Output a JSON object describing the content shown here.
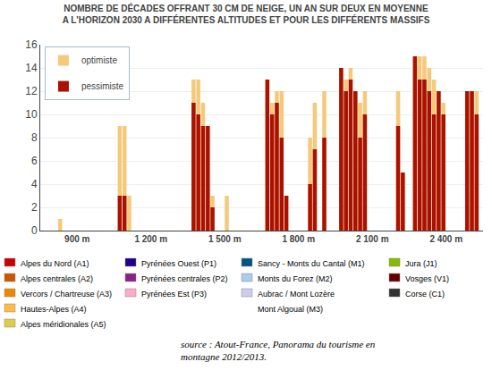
{
  "chart_data": {
    "type": "bar",
    "title": "NOMBRE DE DÉCADES OFFRANT 30 CM DE NEIGE, UN AN SUR DEUX EN MOYENNE\nA L'HORIZON 2030 A DIFFÉRENTES ALTITUDES ET POUR LES DIFFÉRENTS MASSIFS",
    "categories": [
      "900 m",
      "1 200 m",
      "1 500 m",
      "1 800 m",
      "2 100 m",
      "2 400 m"
    ],
    "series": [
      {
        "name": "optimiste",
        "color": "#f5c97a",
        "values": [
          [
            0,
            0,
            0,
            1,
            0,
            0,
            0,
            0,
            0,
            0,
            0,
            0,
            0,
            0
          ],
          [
            9,
            9,
            3,
            0,
            0,
            0,
            0,
            0,
            0,
            0,
            0,
            0,
            0,
            0
          ],
          [
            13,
            13,
            11,
            9,
            3,
            0,
            0,
            3,
            0,
            0,
            0,
            0,
            0,
            0
          ],
          [
            13,
            11,
            12,
            12,
            3,
            0,
            0,
            0,
            0,
            8,
            11,
            0,
            12,
            0
          ],
          [
            14,
            13,
            14,
            12,
            11,
            12,
            0,
            0,
            0,
            0,
            0,
            0,
            12,
            5
          ],
          [
            15,
            15,
            15,
            14,
            13,
            12,
            11,
            0,
            0,
            0,
            0,
            12,
            12,
            12
          ]
        ]
      },
      {
        "name": "pessimiste",
        "color": "#aa1100",
        "values": [
          [
            0,
            0,
            0,
            0,
            0,
            0,
            0,
            0,
            0,
            0,
            0,
            0,
            0,
            0
          ],
          [
            3,
            3,
            0,
            0,
            0,
            0,
            0,
            0,
            0,
            0,
            0,
            0,
            0,
            0
          ],
          [
            11,
            10,
            9,
            9,
            2,
            0,
            0,
            0,
            0,
            0,
            0,
            0,
            0,
            0
          ],
          [
            13,
            10,
            11,
            8,
            3,
            0,
            0,
            0,
            0,
            4,
            7,
            0,
            8,
            0
          ],
          [
            14,
            12,
            13,
            12,
            8,
            10,
            0,
            0,
            0,
            0,
            0,
            0,
            9,
            5
          ],
          [
            15,
            13,
            13,
            12,
            10,
            12,
            10,
            0,
            0,
            0,
            0,
            12,
            12,
            10
          ]
        ]
      }
    ],
    "ylim": [
      0,
      16
    ],
    "yticks": [
      0,
      2,
      4,
      6,
      8,
      10,
      12,
      14,
      16
    ],
    "grid": true,
    "legend": "upper left",
    "massifs": [
      [
        {
          "name": "Alpes du Nord (A1)",
          "color": "#cc0000"
        },
        {
          "name": "Alpes centrales (A2)",
          "color": "#cc5500"
        },
        {
          "name": "Vercors / Chartreuse (A3)",
          "color": "#ee8800"
        },
        {
          "name": "Hautes-Alpes (A4)",
          "color": "#ffbb44"
        },
        {
          "name": "Alpes méridionales (A5)",
          "color": "#ddcc44"
        }
      ],
      [
        {
          "name": "Pyrénées Ouest (P1)",
          "color": "#220088"
        },
        {
          "name": "Pyrénées centrales (P2)",
          "color": "#882288"
        },
        {
          "name": "Pyrénées Est (P3)",
          "color": "#ffaacc"
        }
      ],
      [
        {
          "name": "Sancy - Monts du Cantal (M1)",
          "color": "#005588"
        },
        {
          "name": "Monts du Forez (M2)",
          "color": "#aaccee"
        },
        {
          "name": "Aubrac / Mont Lozère",
          "color": "#ccccee"
        },
        {
          "name": "Mont Algoual (M3)"
        }
      ],
      [
        {
          "name": "Jura (J1)",
          "color": "#88bb00"
        },
        {
          "name": "Vosges (V1)",
          "color": "#660000"
        },
        {
          "name": "Corse (C1)",
          "color": "#333333"
        }
      ]
    ],
    "annotations": [
      {
        "text": "source : Atout-France, Panorama du tourisme en\nmontagne 2012/2013."
      }
    ]
  }
}
